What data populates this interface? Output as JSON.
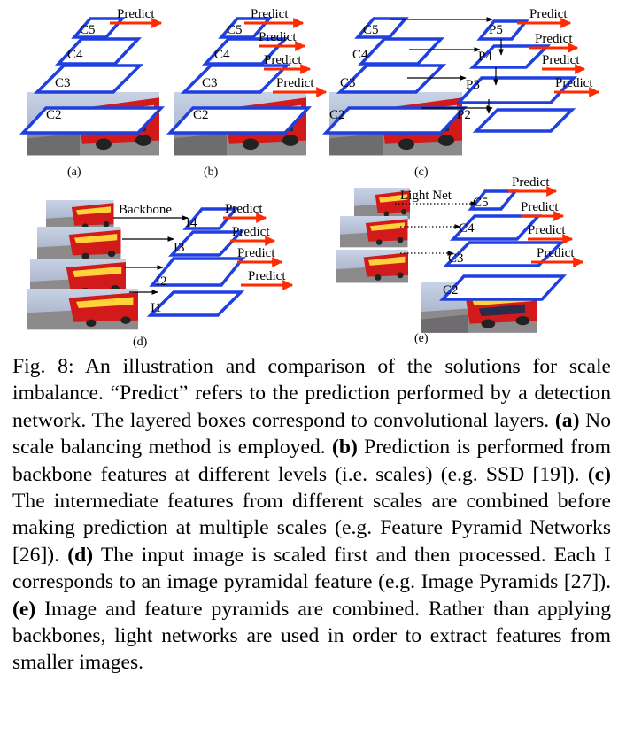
{
  "predict": "Predict",
  "panels": {
    "a": {
      "label": "(a)",
      "layers": [
        "C5",
        "C4",
        "C3",
        "C2"
      ]
    },
    "b": {
      "label": "(b)",
      "layers": [
        "C5",
        "C4",
        "C3",
        "C2"
      ]
    },
    "c": {
      "label": "(c)",
      "layers": [
        "C5",
        "C4",
        "C3",
        "C2"
      ],
      "pyramid": [
        "P5",
        "P4",
        "P3",
        "P2"
      ]
    },
    "d": {
      "label": "(d)",
      "backbone": "Backbone",
      "layers": [
        "I4",
        "I3",
        "I2",
        "I1"
      ]
    },
    "e": {
      "label": "(e)",
      "light_net": "Light Net",
      "layers": [
        "C5",
        "C4",
        "C3",
        "C2"
      ]
    }
  },
  "caption": {
    "prefix": "Fig. 8: An illustration and comparison of the solutions for scale imbalance. “Predict” refers to the prediction per­formed by a detection network. The layered boxes cor­respond to convolutional layers. ",
    "a_tag": "(a)",
    "a_text": " No scale balancing method is employed. ",
    "b_tag": "(b)",
    "b_text": " Prediction is performed from backbone features at different levels (i.e. scales) (e.g. SSD [19]). ",
    "c_tag": "(c)",
    "c_text": " The intermediate features from different scales are combined before making prediction at multiple scales (e.g. Feature Pyramid Networks [26]). ",
    "d_tag": "(d)",
    "d_text": " The input image is scaled first and then processed. Each I corresponds to an image pyramidal feature (e.g. Image Pyramids [27]). ",
    "e_tag": "(e)",
    "e_text": " Image and feature pyramids are combined. Rather than applying backbones, light networks are used in order to extract features from smaller images."
  }
}
